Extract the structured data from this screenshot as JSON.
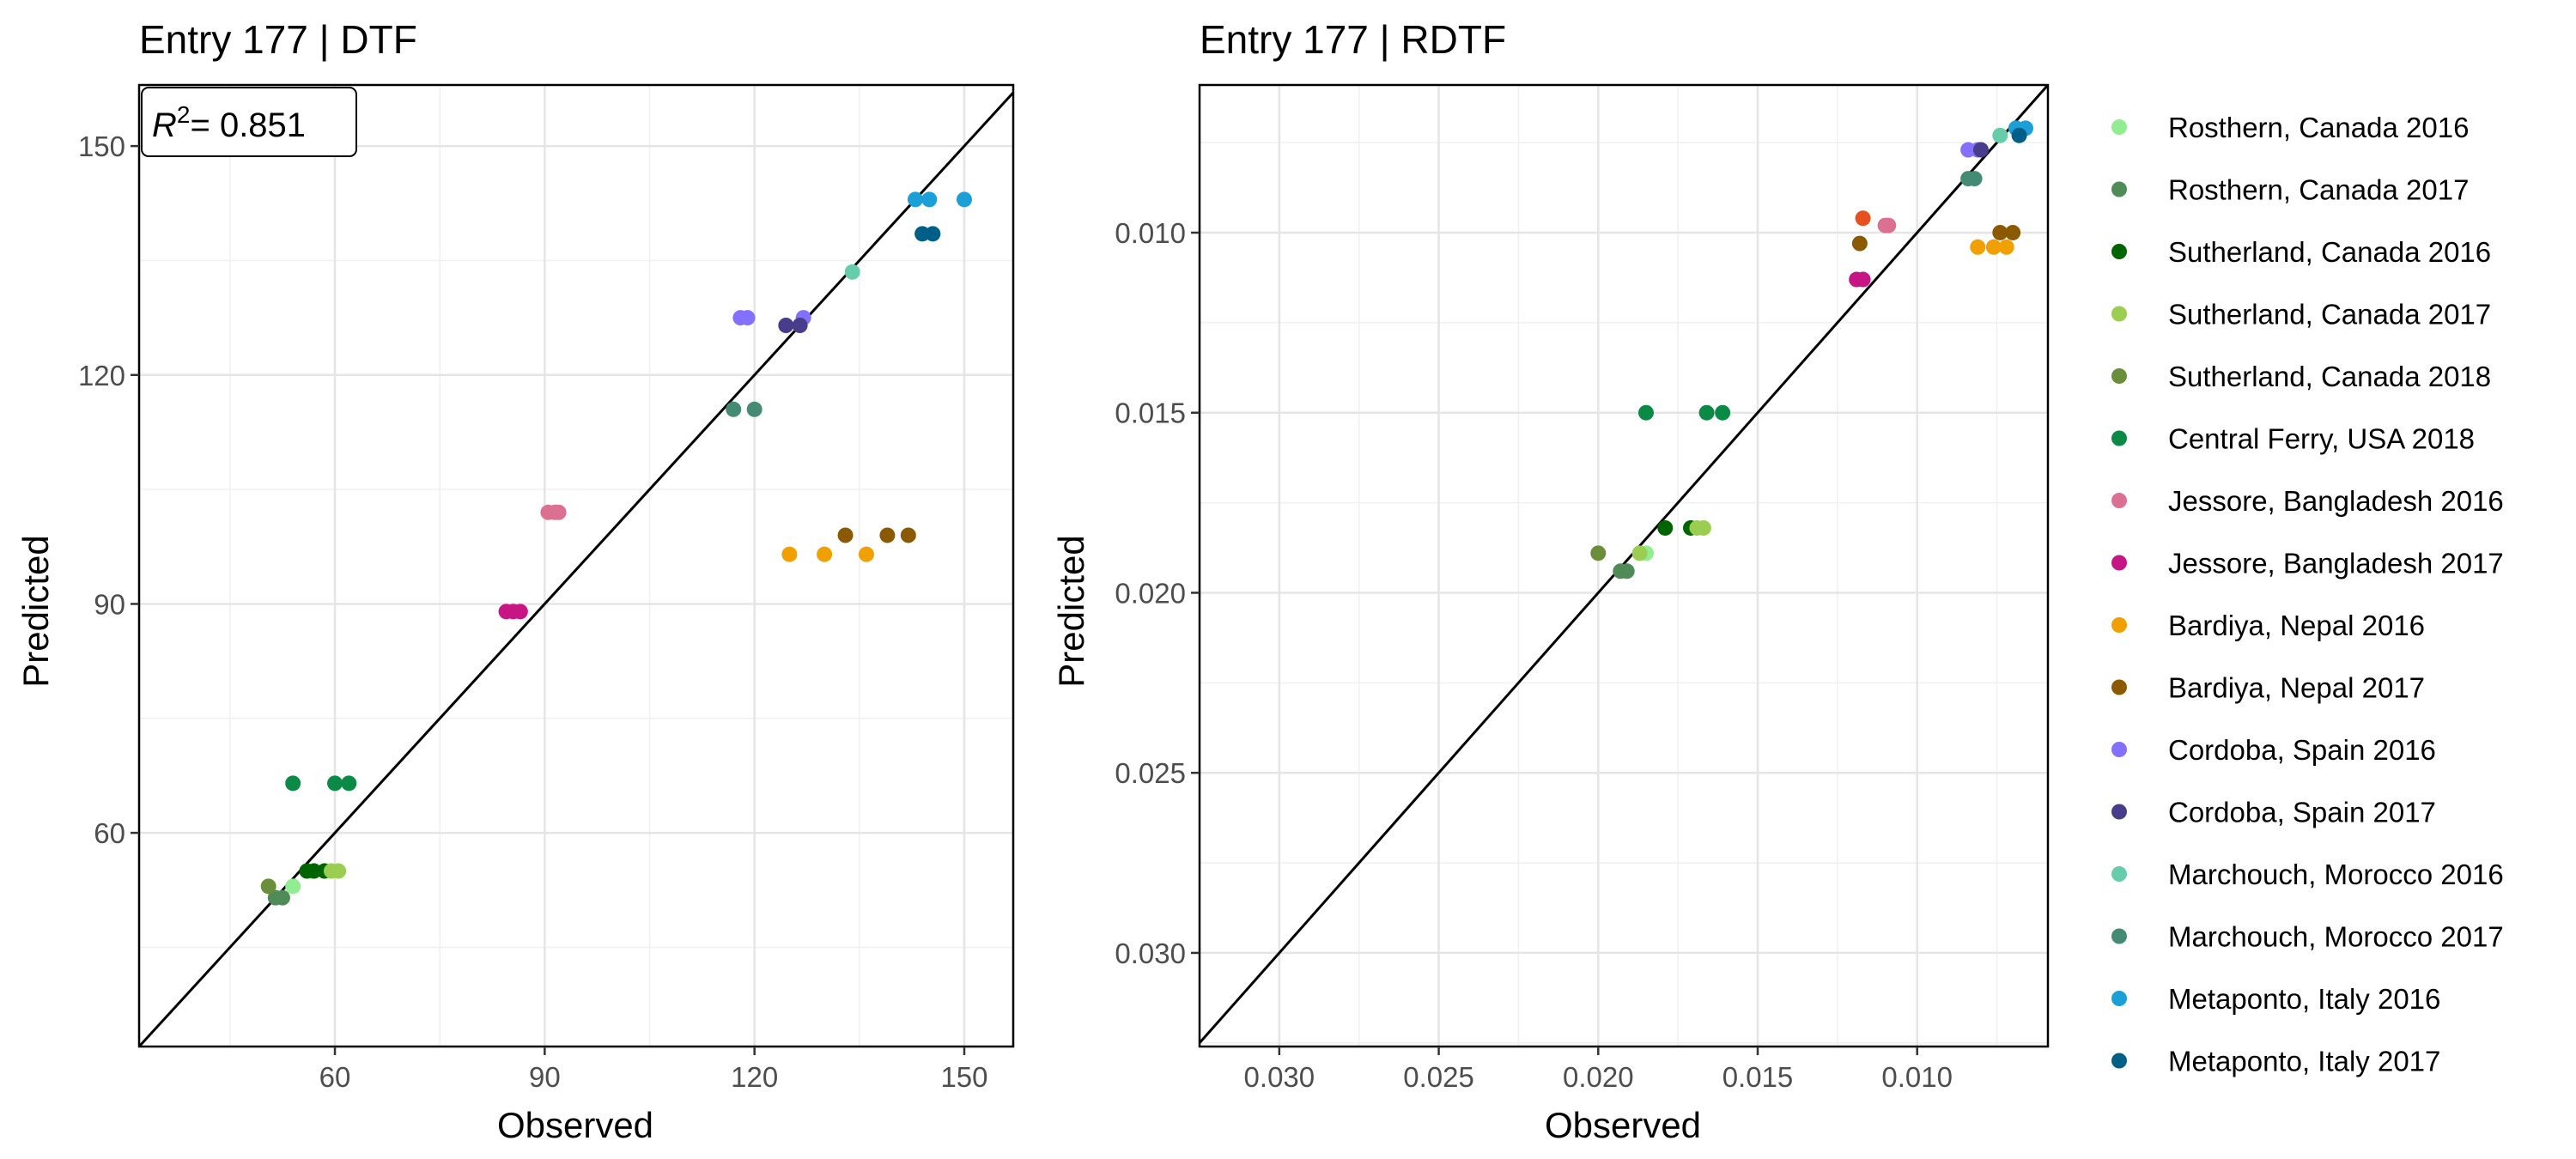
{
  "legend": [
    {
      "name": "Rosthern, Canada 2016",
      "color": "#90EE90"
    },
    {
      "name": "Rosthern, Canada 2017",
      "color": "#4E8B57"
    },
    {
      "name": "Sutherland, Canada 2016",
      "color": "#006400"
    },
    {
      "name": "Sutherland, Canada 2017",
      "color": "#9ACD50"
    },
    {
      "name": "Sutherland, Canada 2018",
      "color": "#6B8E3A"
    },
    {
      "name": "Central Ferry, USA 2018",
      "color": "#0A8A45"
    },
    {
      "name": "Jessore, Bangladesh 2016",
      "color": "#DB7093"
    },
    {
      "name": "Jessore, Bangladesh 2017",
      "color": "#C71585"
    },
    {
      "name": "Bardiya, Nepal 2016",
      "color": "#F0A000"
    },
    {
      "name": "Bardiya, Nepal 2017",
      "color": "#8B5A00"
    },
    {
      "name": "Cordoba, Spain 2016",
      "color": "#8470FF"
    },
    {
      "name": "Cordoba, Spain 2017",
      "color": "#483D8B"
    },
    {
      "name": "Marchouch, Morocco 2016",
      "color": "#66CDAA"
    },
    {
      "name": "Marchouch, Morocco 2017",
      "color": "#458B74"
    },
    {
      "name": "Metaponto, Italy 2016",
      "color": "#1AA0D6"
    },
    {
      "name": "Metaponto, Italy 2017",
      "color": "#005F87"
    }
  ],
  "chart_data": [
    {
      "type": "scatter",
      "title": "Entry 177 | DTF",
      "xlabel": "Observed",
      "ylabel": "Predicted",
      "xlim": [
        32,
        157
      ],
      "ylim": [
        32,
        158
      ],
      "xticks": [
        60,
        90,
        120,
        150
      ],
      "yticks": [
        60,
        90,
        120,
        150
      ],
      "reverse": false,
      "annotation": "= 0.851",
      "grid": true,
      "identity_line": true,
      "points": [
        {
          "s": 0,
          "x": 54,
          "y": 53
        },
        {
          "s": 1,
          "x": 51.5,
          "y": 51.5
        },
        {
          "s": 1,
          "x": 52.5,
          "y": 51.5
        },
        {
          "s": 2,
          "x": 56,
          "y": 55
        },
        {
          "s": 2,
          "x": 57,
          "y": 55
        },
        {
          "s": 2,
          "x": 58.5,
          "y": 55
        },
        {
          "s": 3,
          "x": 59.5,
          "y": 55
        },
        {
          "s": 3,
          "x": 60.5,
          "y": 55
        },
        {
          "s": 4,
          "x": 50.5,
          "y": 53
        },
        {
          "s": 5,
          "x": 54,
          "y": 66.5
        },
        {
          "s": 5,
          "x": 60,
          "y": 66.5
        },
        {
          "s": 5,
          "x": 62,
          "y": 66.5
        },
        {
          "s": 6,
          "x": 90.5,
          "y": 102
        },
        {
          "s": 6,
          "x": 91.5,
          "y": 102
        },
        {
          "s": 6,
          "x": 92,
          "y": 102
        },
        {
          "s": 7,
          "x": 84.5,
          "y": 89
        },
        {
          "s": 7,
          "x": 85.5,
          "y": 89
        },
        {
          "s": 7,
          "x": 86.5,
          "y": 89
        },
        {
          "s": 8,
          "x": 125,
          "y": 96.5
        },
        {
          "s": 8,
          "x": 130,
          "y": 96.5
        },
        {
          "s": 8,
          "x": 136,
          "y": 96.5
        },
        {
          "s": 9,
          "x": 133,
          "y": 99
        },
        {
          "s": 9,
          "x": 139,
          "y": 99
        },
        {
          "s": 9,
          "x": 142,
          "y": 99
        },
        {
          "s": 10,
          "x": 118,
          "y": 127.5
        },
        {
          "s": 10,
          "x": 119,
          "y": 127.5
        },
        {
          "s": 10,
          "x": 127,
          "y": 127.5
        },
        {
          "s": 11,
          "x": 124.5,
          "y": 126.5
        },
        {
          "s": 11,
          "x": 126.5,
          "y": 126.5
        },
        {
          "s": 12,
          "x": 134,
          "y": 133.5
        },
        {
          "s": 13,
          "x": 117,
          "y": 115.5
        },
        {
          "s": 13,
          "x": 120,
          "y": 115.5
        },
        {
          "s": 14,
          "x": 143,
          "y": 143
        },
        {
          "s": 14,
          "x": 145,
          "y": 143
        },
        {
          "s": 14,
          "x": 150,
          "y": 143
        },
        {
          "s": 15,
          "x": 144,
          "y": 138.5
        },
        {
          "s": 15,
          "x": 145.5,
          "y": 138.5
        }
      ]
    },
    {
      "type": "scatter",
      "title": "Entry 177 | RDTF",
      "xlabel": "Observed",
      "ylabel": "Predicted",
      "xlim": [
        0.0325,
        0.0059
      ],
      "ylim": [
        0.0326,
        0.0059
      ],
      "xticks": [
        0.03,
        0.025,
        0.02,
        0.015,
        0.01
      ],
      "yticks": [
        0.01,
        0.015,
        0.02,
        0.025,
        0.03
      ],
      "xtick_labels": [
        "0.030",
        "0.025",
        "0.020",
        "0.015",
        "0.010"
      ],
      "ytick_labels": [
        "0.010",
        "0.015",
        "0.020",
        "0.025",
        "0.030"
      ],
      "reverse": true,
      "grid": true,
      "identity_line": true,
      "points": [
        {
          "s": 0,
          "x": 0.0185,
          "y": 0.0189
        },
        {
          "s": 1,
          "x": 0.0193,
          "y": 0.0194
        },
        {
          "s": 1,
          "x": 0.0191,
          "y": 0.0194
        },
        {
          "s": 2,
          "x": 0.0179,
          "y": 0.0182
        },
        {
          "s": 2,
          "x": 0.0171,
          "y": 0.0182
        },
        {
          "s": 3,
          "x": 0.0187,
          "y": 0.0189
        },
        {
          "s": 3,
          "x": 0.0169,
          "y": 0.0182
        },
        {
          "s": 3,
          "x": 0.0167,
          "y": 0.0182
        },
        {
          "s": 4,
          "x": 0.02,
          "y": 0.0189
        },
        {
          "s": 5,
          "x": 0.0185,
          "y": 0.015
        },
        {
          "s": 5,
          "x": 0.0166,
          "y": 0.015
        },
        {
          "s": 5,
          "x": 0.0161,
          "y": 0.015
        },
        {
          "s": 6,
          "x": 0.011,
          "y": 0.0098
        },
        {
          "s": 6,
          "x": 0.0109,
          "y": 0.0098
        },
        {
          "s": 7,
          "x": 0.0119,
          "y": 0.0113
        },
        {
          "s": 7,
          "x": 0.0117,
          "y": 0.0113
        },
        {
          "s": 8,
          "x": 0.0081,
          "y": 0.0104
        },
        {
          "s": 8,
          "x": 0.0076,
          "y": 0.0104
        },
        {
          "s": 8,
          "x": 0.0072,
          "y": 0.0104
        },
        {
          "s": 9,
          "x": 0.0118,
          "y": 0.0103
        },
        {
          "s": 9,
          "x": 0.0074,
          "y": 0.01
        },
        {
          "s": 9,
          "x": 0.007,
          "y": 0.01
        },
        {
          "s": 10,
          "x": 0.0084,
          "y": 0.0077
        },
        {
          "s": 10,
          "x": 0.0081,
          "y": 0.0077
        },
        {
          "s": 11,
          "x": 0.008,
          "y": 0.0077
        },
        {
          "s": 12,
          "x": 0.0074,
          "y": 0.0073
        },
        {
          "s": 13,
          "x": 0.0084,
          "y": 0.0085
        },
        {
          "s": 13,
          "x": 0.0082,
          "y": 0.0085
        },
        {
          "s": 14,
          "x": 0.0069,
          "y": 0.0071
        },
        {
          "s": 14,
          "x": 0.0066,
          "y": 0.0071
        },
        {
          "s": 15,
          "x": 0.0068,
          "y": 0.0073
        }
      ],
      "extra_points": [
        {
          "x": 0.0117,
          "y": 0.0096,
          "color": "#E8501E"
        }
      ]
    }
  ]
}
